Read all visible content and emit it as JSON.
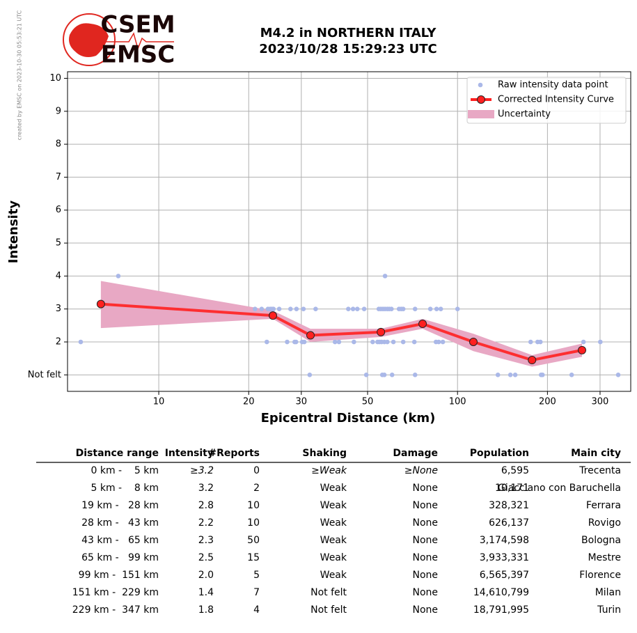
{
  "watermark": "created by EMSC on 2023-10-30 05:53:21 UTC",
  "logo": {
    "top": "CSEM",
    "bottom": "EMSC"
  },
  "chart_data": {
    "type": "line",
    "title": "M4.2 in NORTHERN ITALY",
    "subtitle": "2023/10/28 15:29:23 UTC",
    "x_label": "Epicentral Distance (km)",
    "y_label": "Intensity",
    "log_x": true,
    "grid": true,
    "legend_position": "upper right",
    "xlim": [
      4.95,
      380
    ],
    "ylim": [
      0.5,
      10.2
    ],
    "xticks": [
      10,
      20,
      30,
      50,
      100,
      200,
      300
    ],
    "yticks": [
      {
        "value": 1,
        "label": "Not felt"
      },
      2,
      3,
      4,
      5,
      6,
      7,
      8,
      9,
      10
    ],
    "series": [
      {
        "name": "Raw intensity data point",
        "type": "scatter",
        "color": "#aab8e8",
        "x": [
          5.48,
          7.32,
          21,
          22.1,
          23.2,
          23.6,
          23.9,
          24.2,
          25.3,
          27.6,
          28.9,
          30.5,
          33.5,
          43.1,
          44.7,
          46.2,
          48.7,
          54.5,
          55.4,
          56.3,
          57.2,
          58.2,
          59.1,
          60.1,
          63.7,
          64.8,
          65.8,
          72.1,
          81.1,
          85.1,
          87.9,
          100,
          57.2,
          23.0,
          26.9,
          28.5,
          28.8,
          30.2,
          30.7,
          38.9,
          40.1,
          45.0,
          52.0,
          54.0,
          54.8,
          55.7,
          56.9,
          58.2,
          61.0,
          65.8,
          71.7,
          84.7,
          86.5,
          89.3,
          175.7,
          185.4,
          189.4,
          264,
          300.6,
          32.0,
          49.5,
          56.0,
          56.9,
          60.4,
          72.1,
          136.5,
          150.3,
          156,
          190.4,
          192.5,
          241,
          345
        ],
        "values": [
          2,
          4,
          3,
          3,
          3,
          3,
          3,
          3,
          3,
          3,
          3,
          3,
          3,
          3,
          3,
          3,
          3,
          3,
          3,
          3,
          3,
          3,
          3,
          3,
          3,
          3,
          3,
          3,
          3,
          3,
          3,
          3,
          4,
          2,
          2,
          2,
          2,
          2,
          2,
          2,
          2,
          2,
          2,
          2,
          2,
          2,
          2,
          2,
          2,
          2,
          2,
          2,
          2,
          2,
          2,
          2,
          2,
          2,
          2,
          1,
          1,
          1,
          1,
          1,
          1,
          1,
          1,
          1,
          1,
          1,
          1,
          1
        ]
      },
      {
        "name": "Corrected Intensity Curve",
        "type": "line",
        "color": "#ff2020",
        "x": [
          6.4,
          24.1,
          32.2,
          55.4,
          76.4,
          113,
          177.6,
          261
        ],
        "values": [
          3.15,
          2.8,
          2.2,
          2.3,
          2.55,
          2.0,
          1.45,
          1.75
        ]
      },
      {
        "name": "Uncertainty",
        "type": "band",
        "color": "#e8a8c4",
        "x": [
          6.4,
          24.1,
          32.2,
          55.4,
          76.4,
          113,
          177.6,
          261
        ],
        "lower": [
          2.42,
          2.7,
          2.0,
          2.15,
          2.4,
          1.72,
          1.25,
          1.55
        ],
        "upper": [
          3.85,
          2.95,
          2.4,
          2.4,
          2.7,
          2.25,
          1.6,
          1.95
        ]
      }
    ]
  },
  "table": {
    "headers": [
      "Distance range",
      "Intensity",
      "#Reports",
      "Shaking",
      "Damage",
      "Population",
      "Main city"
    ],
    "rows": [
      [
        "0 km -    5 km",
        "≥3.2",
        "0",
        "≥Weak",
        "≥None",
        "6,595",
        "Trecenta"
      ],
      [
        "5 km -    8 km",
        "3.2",
        "2",
        "Weak",
        "None",
        "10,171",
        "Giacciano con Baruchella"
      ],
      [
        "19 km -   28 km",
        "2.8",
        "10",
        "Weak",
        "None",
        "328,321",
        "Ferrara"
      ],
      [
        "28 km -   43 km",
        "2.2",
        "10",
        "Weak",
        "None",
        "626,137",
        "Rovigo"
      ],
      [
        "43 km -   65 km",
        "2.3",
        "50",
        "Weak",
        "None",
        "3,174,598",
        "Bologna"
      ],
      [
        "65 km -   99 km",
        "2.5",
        "15",
        "Weak",
        "None",
        "3,933,331",
        "Mestre"
      ],
      [
        "99 km -  151 km",
        "2.0",
        "5",
        "Weak",
        "None",
        "6,565,397",
        "Florence"
      ],
      [
        "151 km -  229 km",
        "1.4",
        "7",
        "Not felt",
        "None",
        "14,610,799",
        "Milan"
      ],
      [
        "229 km -  347 km",
        "1.8",
        "4",
        "Not felt",
        "None",
        "18,791,995",
        "Turin"
      ]
    ]
  }
}
